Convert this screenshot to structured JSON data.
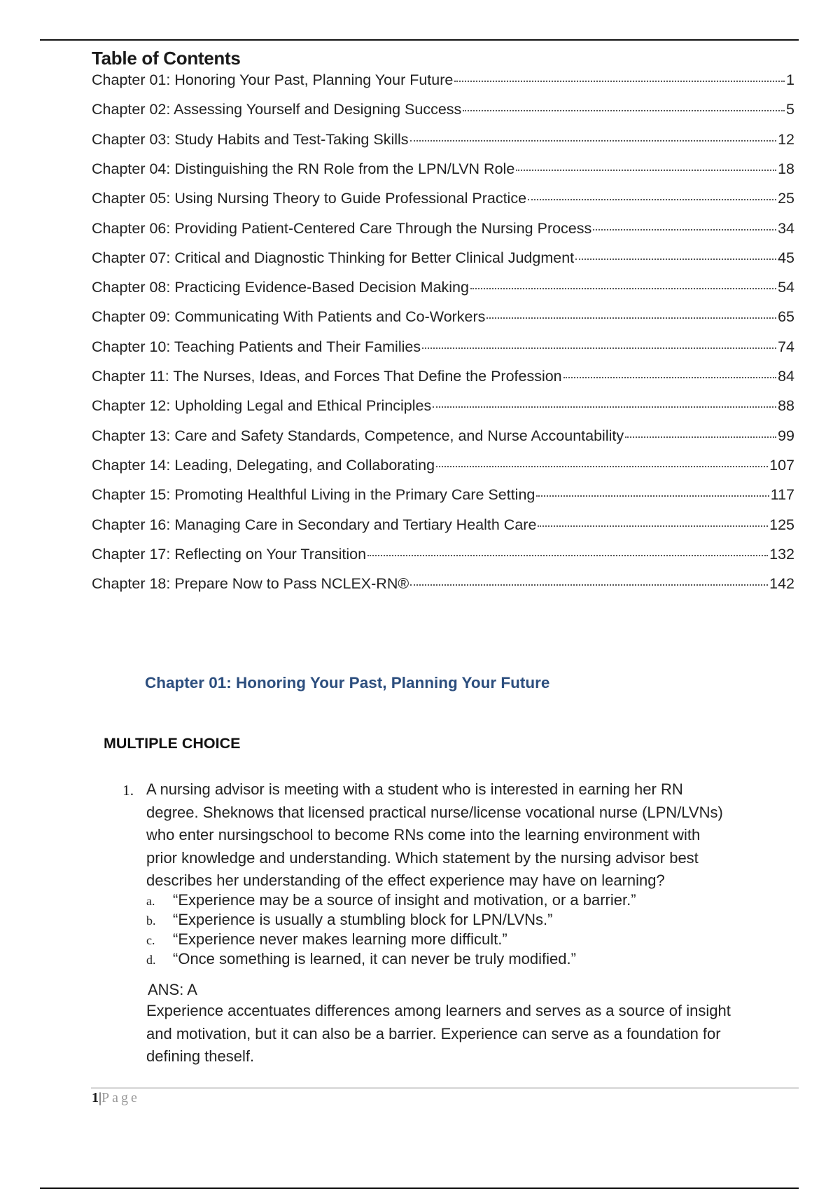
{
  "toc": {
    "title": "Table of Contents",
    "entries": [
      {
        "label": "Chapter 01: Honoring Your Past, Planning Your Future",
        "page": "1"
      },
      {
        "label": "Chapter 02: Assessing Yourself and Designing Success",
        "page": "5"
      },
      {
        "label": "Chapter 03: Study Habits and Test-Taking Skills",
        "page": "12"
      },
      {
        "label": "Chapter 04: Distinguishing the RN Role from the LPN/LVN Role",
        "page": "18"
      },
      {
        "label": "Chapter 05: Using Nursing Theory to Guide Professional Practice",
        "page": "25"
      },
      {
        "label": "Chapter 06: Providing Patient-Centered Care Through the Nursing Process",
        "page": "34"
      },
      {
        "label": "Chapter 07: Critical and Diagnostic Thinking for Better Clinical Judgment",
        "page": "45"
      },
      {
        "label": "Chapter 08: Practicing Evidence-Based Decision Making",
        "page": "54"
      },
      {
        "label": "Chapter 09: Communicating With Patients and Co-Workers",
        "page": "65"
      },
      {
        "label": "Chapter 10: Teaching Patients and Their Families",
        "page": "74"
      },
      {
        "label": "Chapter 11: The Nurses, Ideas, and Forces That Define the Profession",
        "page": "84"
      },
      {
        "label": "Chapter 12: Upholding Legal and Ethical Principles",
        "page": "88"
      },
      {
        "label": "Chapter 13: Care and Safety Standards, Competence, and Nurse Accountability",
        "page": "99"
      },
      {
        "label": "Chapter 14: Leading, Delegating, and Collaborating",
        "page": "107"
      },
      {
        "label": "Chapter 15: Promoting Healthful Living in the Primary Care Setting",
        "page": "117"
      },
      {
        "label": "Chapter 16: Managing Care in Secondary and Tertiary Health Care",
        "page": "125"
      },
      {
        "label": "Chapter 17: Reflecting on Your Transition",
        "page": "132"
      },
      {
        "label": "Chapter 18: Prepare Now to Pass NCLEX-RN®",
        "page": "142"
      }
    ]
  },
  "chapter_heading": "Chapter 01: Honoring Your Past, Planning Your Future",
  "section_heading": "MULTIPLE CHOICE",
  "question": {
    "number": "1.",
    "lines": [
      "A nursing advisor is meeting with a student who is interested in earning her RN",
      "degree. Sheknows that licensed practical nurse/license vocational nurse (LPN/LVNs)",
      "who enter nursingschool to become RNs come into the learning environment with",
      "prior knowledge and understanding. Which statement by the nursing advisor best",
      "describes her understanding of the effect experience may have on learning?"
    ],
    "options": [
      {
        "letter": "a.",
        "text": "“Experience may be a source of insight and motivation, or a barrier.”"
      },
      {
        "letter": "b.",
        "text": "“Experience is usually a stumbling block for LPN/LVNs.”"
      },
      {
        "letter": "c.",
        "text": "“Experience never makes learning more difficult.”"
      },
      {
        "letter": "d.",
        "text": "“Once something is learned, it can never be truly modified.”"
      }
    ],
    "answer": "ANS: A",
    "rationale_lines": [
      "Experience accentuates differences among learners and serves as a source of insight",
      "and motivation, but it can also be a barrier. Experience can serve as a foundation for",
      "defining theself."
    ]
  },
  "footer": {
    "page_number": "1",
    "separator": "|",
    "page_word": "Page"
  },
  "colors": {
    "chapter_heading": "#2c4e7e"
  }
}
